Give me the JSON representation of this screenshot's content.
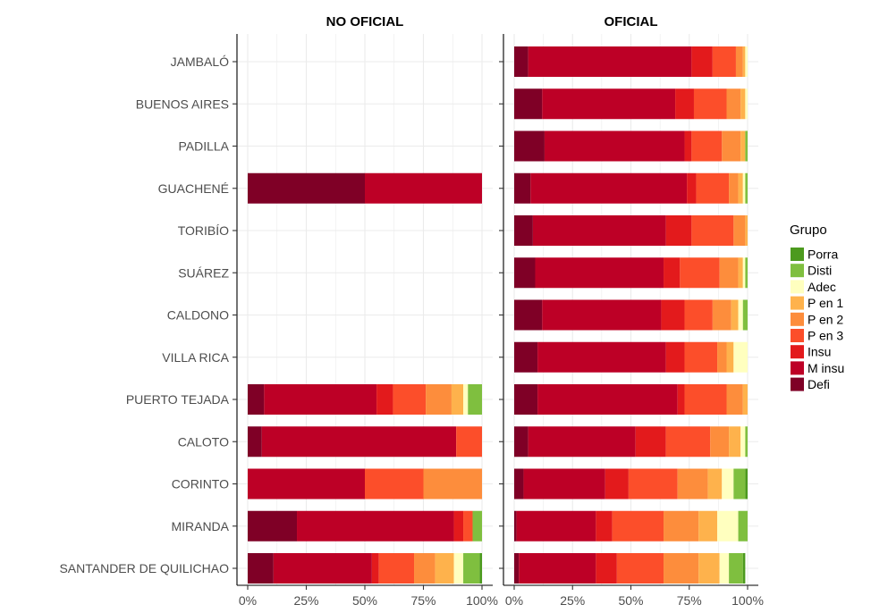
{
  "chart_data": {
    "type": "bar",
    "orientation": "horizontal",
    "stacked": "percent",
    "facets": [
      "NO OFICIAL",
      "OFICIAL"
    ],
    "categories": [
      "JAMBALÓ",
      "BUENOS AIRES",
      "PADILLA",
      "GUACHENÉ",
      "TORIBÍO",
      "SUÁREZ",
      "CALDONO",
      "VILLA RICA",
      "PUERTO TEJADA",
      "CALOTO",
      "CORINTO",
      "MIRANDA",
      "SANTANDER DE QUILICHAO"
    ],
    "x_ticks": [
      "0%",
      "25%",
      "50%",
      "75%",
      "100%"
    ],
    "xlim": [
      0,
      100
    ],
    "grid": true,
    "legend": {
      "title": "Grupo",
      "position": "right",
      "items": [
        "Porra",
        "Disti",
        "Adec",
        "P en 1",
        "P en 2",
        "P en 3",
        "Insu",
        "M insu",
        "Defi"
      ]
    },
    "stack_order": [
      "Defi",
      "M insu",
      "Insu",
      "P en 3",
      "P en 2",
      "P en 1",
      "Adec",
      "Disti",
      "Porra"
    ],
    "colors": {
      "Defi": "#7f0026",
      "M insu": "#bd0026",
      "Insu": "#e31a1c",
      "P en 3": "#fc4e2a",
      "P en 2": "#fd8d3c",
      "P en 1": "#feb24c",
      "Adec": "#ffffbf",
      "Disti": "#7fbf3f",
      "Porra": "#4c9a1e"
    },
    "panels": [
      {
        "facet": "NO OFICIAL",
        "rows": [
          null,
          null,
          null,
          {
            "Defi": 50,
            "M insu": 50
          },
          null,
          null,
          null,
          null,
          {
            "Defi": 7,
            "M insu": 48,
            "Insu": 7,
            "P en 3": 14,
            "P en 2": 11,
            "P en 1": 5,
            "Adec": 2,
            "Disti": 6
          },
          {
            "Defi": 6,
            "M insu": 83,
            "P en 3": 11
          },
          {
            "M insu": 50,
            "P en 3": 25,
            "P en 2": 25
          },
          {
            "Defi": 21,
            "M insu": 67,
            "Insu": 4,
            "P en 3": 4,
            "Disti": 4
          },
          {
            "Defi": 11,
            "M insu": 42,
            "Insu": 3,
            "P en 3": 15,
            "P en 2": 9,
            "P en 1": 8,
            "Adec": 4,
            "Disti": 7,
            "Porra": 1
          }
        ]
      },
      {
        "facet": "OFICIAL",
        "rows": [
          {
            "Defi": 6,
            "M insu": 70,
            "Insu": 9,
            "P en 3": 10,
            "P en 2": 3,
            "P en 1": 1,
            "Adec": 1
          },
          {
            "Defi": 12,
            "M insu": 57,
            "Insu": 8,
            "P en 3": 14,
            "P en 2": 6,
            "P en 1": 2,
            "Adec": 1
          },
          {
            "Defi": 13,
            "M insu": 60,
            "Insu": 3,
            "P en 3": 13,
            "P en 2": 8,
            "P en 1": 2,
            "Disti": 1
          },
          {
            "Defi": 7,
            "M insu": 67,
            "Insu": 4,
            "P en 3": 14,
            "P en 2": 4,
            "P en 1": 2,
            "Adec": 1,
            "Disti": 1
          },
          {
            "Defi": 8,
            "M insu": 57,
            "Insu": 11,
            "P en 3": 18,
            "P en 2": 5,
            "P en 1": 1
          },
          {
            "Defi": 9,
            "M insu": 55,
            "Insu": 7,
            "P en 3": 17,
            "P en 2": 8,
            "P en 1": 2,
            "Adec": 1,
            "Disti": 1
          },
          {
            "Defi": 12,
            "M insu": 51,
            "Insu": 10,
            "P en 3": 12,
            "P en 2": 8,
            "P en 1": 3,
            "Adec": 2,
            "Disti": 2
          },
          {
            "Defi": 10,
            "M insu": 55,
            "Insu": 8,
            "P en 3": 14,
            "P en 2": 4,
            "P en 1": 3,
            "Adec": 6
          },
          {
            "Defi": 10,
            "M insu": 60,
            "Insu": 3,
            "P en 3": 18,
            "P en 2": 7,
            "P en 1": 2
          },
          {
            "Defi": 6,
            "M insu": 46,
            "Insu": 13,
            "P en 3": 19,
            "P en 2": 8,
            "P en 1": 5,
            "Adec": 2,
            "Disti": 1
          },
          {
            "Defi": 4,
            "M insu": 35,
            "Insu": 10,
            "P en 3": 21,
            "P en 2": 13,
            "P en 1": 6,
            "Adec": 5,
            "Disti": 5,
            "Porra": 1
          },
          {
            "Defi": 1,
            "M insu": 34,
            "Insu": 7,
            "P en 3": 22,
            "P en 2": 15,
            "P en 1": 8,
            "Adec": 9,
            "Disti": 4
          },
          {
            "Defi": 2,
            "M insu": 33,
            "Insu": 9,
            "P en 3": 20,
            "P en 2": 15,
            "P en 1": 9,
            "Adec": 4,
            "Disti": 6,
            "Porra": 1
          }
        ]
      }
    ]
  }
}
